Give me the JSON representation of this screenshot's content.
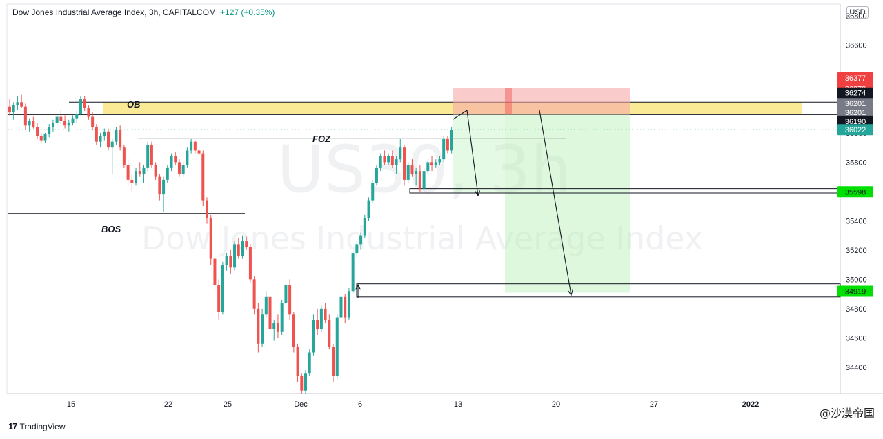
{
  "header": {
    "title": "Dow Jones Industrial Average Index, 3h, CAPITALCOM",
    "change": "+127 (+0.35%)"
  },
  "watermark": {
    "symbol": "US30, 3h",
    "name": "Dow Jones Industrial Average Index"
  },
  "currency": "USD",
  "branding": {
    "logo": "17",
    "name": "TradingView",
    "corner_mark": "@沙漠帝国"
  },
  "colors": {
    "up": "#26a69a",
    "down": "#ef5350",
    "ob_zone": "#fbe88a",
    "stop_zone": "#f7a9a8",
    "target_zone": "#b5f0b3",
    "label_green": "#00e000",
    "label_red": "#f04040",
    "label_black": "#131722",
    "label_gray": "#787b86",
    "label_last": "#26a69a"
  },
  "chart_data": {
    "type": "candlestick",
    "ylim": [
      34220,
      36880
    ],
    "y_ticks": [
      34400,
      34600,
      34800,
      35000,
      35200,
      35400,
      35600,
      35800,
      36000,
      36200,
      36400,
      36600,
      36800
    ],
    "x_ticks": [
      "15",
      "22",
      "25",
      "Dec",
      "6",
      "13",
      "20",
      "27",
      "2022"
    ],
    "annotations": [
      {
        "text": "OB",
        "price": 36190
      },
      {
        "text": "FOZ",
        "price": 35950
      },
      {
        "text": "BOS",
        "price": 35450
      }
    ],
    "price_labels": [
      {
        "text": "36377",
        "price": 36377,
        "color": "label_red"
      },
      {
        "text": "36372",
        "price": 36303,
        "color": "label_red"
      },
      {
        "text": "36274",
        "price": 36274,
        "color": "label_black"
      },
      {
        "text": "36201",
        "price": 36201,
        "color": "label_gray"
      },
      {
        "text": "36201",
        "price": 36140,
        "color": "label_gray"
      },
      {
        "text": "36190",
        "price": 36080,
        "color": "label_black"
      },
      {
        "text": "36022",
        "price": 36022,
        "color": "label_last"
      },
      {
        "text": "35598",
        "price": 35598,
        "color": "label_green"
      },
      {
        "text": "34919",
        "price": 34919,
        "color": "label_green"
      }
    ],
    "levels": {
      "ob_top": 36210,
      "ob_bottom": 36125,
      "foz": 35960,
      "bos": 35450,
      "target1_top": 35620,
      "target1_bottom": 35590,
      "target2_top": 34970,
      "target2_bottom": 34880,
      "stop_top": 36310,
      "entry": 36125,
      "tp": 34910
    },
    "candles": [
      {
        "o": 36180,
        "h": 36230,
        "l": 36120,
        "c": 36140
      },
      {
        "o": 36140,
        "h": 36210,
        "l": 36090,
        "c": 36190
      },
      {
        "o": 36190,
        "h": 36250,
        "l": 36160,
        "c": 36210
      },
      {
        "o": 36210,
        "h": 36260,
        "l": 36170,
        "c": 36180
      },
      {
        "o": 36180,
        "h": 36200,
        "l": 36020,
        "c": 36050
      },
      {
        "o": 36050,
        "h": 36100,
        "l": 36010,
        "c": 36080
      },
      {
        "o": 36080,
        "h": 36110,
        "l": 36030,
        "c": 36040
      },
      {
        "o": 36040,
        "h": 36070,
        "l": 35960,
        "c": 35980
      },
      {
        "o": 35980,
        "h": 36000,
        "l": 35930,
        "c": 35950
      },
      {
        "o": 35950,
        "h": 36000,
        "l": 35930,
        "c": 35990
      },
      {
        "o": 35990,
        "h": 36060,
        "l": 35970,
        "c": 36040
      },
      {
        "o": 36040,
        "h": 36090,
        "l": 36010,
        "c": 36070
      },
      {
        "o": 36070,
        "h": 36130,
        "l": 36050,
        "c": 36110
      },
      {
        "o": 36110,
        "h": 36160,
        "l": 36060,
        "c": 36080
      },
      {
        "o": 36080,
        "h": 36120,
        "l": 36030,
        "c": 36050
      },
      {
        "o": 36050,
        "h": 36090,
        "l": 36010,
        "c": 36070
      },
      {
        "o": 36070,
        "h": 36120,
        "l": 36050,
        "c": 36100
      },
      {
        "o": 36100,
        "h": 36150,
        "l": 36070,
        "c": 36130
      },
      {
        "o": 36130,
        "h": 36250,
        "l": 36120,
        "c": 36230
      },
      {
        "o": 36230,
        "h": 36250,
        "l": 36150,
        "c": 36170
      },
      {
        "o": 36170,
        "h": 36190,
        "l": 36090,
        "c": 36110
      },
      {
        "o": 36110,
        "h": 36140,
        "l": 36020,
        "c": 36040
      },
      {
        "o": 36040,
        "h": 36060,
        "l": 35920,
        "c": 35940
      },
      {
        "o": 35940,
        "h": 36000,
        "l": 35900,
        "c": 35980
      },
      {
        "o": 35980,
        "h": 36030,
        "l": 35950,
        "c": 36010
      },
      {
        "o": 36010,
        "h": 36030,
        "l": 35880,
        "c": 35900
      },
      {
        "o": 35900,
        "h": 35960,
        "l": 35720,
        "c": 35940
      },
      {
        "o": 35940,
        "h": 36040,
        "l": 35920,
        "c": 36020
      },
      {
        "o": 36020,
        "h": 36050,
        "l": 35880,
        "c": 35900
      },
      {
        "o": 35900,
        "h": 35920,
        "l": 35760,
        "c": 35780
      },
      {
        "o": 35780,
        "h": 35820,
        "l": 35640,
        "c": 35680
      },
      {
        "o": 35680,
        "h": 35720,
        "l": 35600,
        "c": 35660
      },
      {
        "o": 35660,
        "h": 35760,
        "l": 35640,
        "c": 35740
      },
      {
        "o": 35740,
        "h": 35800,
        "l": 35700,
        "c": 35720
      },
      {
        "o": 35720,
        "h": 35780,
        "l": 35660,
        "c": 35760
      },
      {
        "o": 35760,
        "h": 35940,
        "l": 35740,
        "c": 35920
      },
      {
        "o": 35920,
        "h": 35940,
        "l": 35760,
        "c": 35780
      },
      {
        "o": 35780,
        "h": 35800,
        "l": 35680,
        "c": 35700
      },
      {
        "o": 35700,
        "h": 35720,
        "l": 35540,
        "c": 35580
      },
      {
        "o": 35580,
        "h": 35700,
        "l": 35460,
        "c": 35680
      },
      {
        "o": 35680,
        "h": 35780,
        "l": 35660,
        "c": 35760
      },
      {
        "o": 35760,
        "h": 35860,
        "l": 35740,
        "c": 35840
      },
      {
        "o": 35840,
        "h": 35870,
        "l": 35780,
        "c": 35800
      },
      {
        "o": 35800,
        "h": 35820,
        "l": 35700,
        "c": 35720
      },
      {
        "o": 35720,
        "h": 35800,
        "l": 35700,
        "c": 35780
      },
      {
        "o": 35780,
        "h": 35900,
        "l": 35760,
        "c": 35880
      },
      {
        "o": 35880,
        "h": 35960,
        "l": 35860,
        "c": 35940
      },
      {
        "o": 35940,
        "h": 35950,
        "l": 35860,
        "c": 35880
      },
      {
        "o": 35880,
        "h": 35910,
        "l": 35840,
        "c": 35860
      },
      {
        "o": 35860,
        "h": 35880,
        "l": 35500,
        "c": 35540
      },
      {
        "o": 35540,
        "h": 35560,
        "l": 35380,
        "c": 35420
      },
      {
        "o": 35420,
        "h": 35440,
        "l": 35100,
        "c": 35140
      },
      {
        "o": 35140,
        "h": 35160,
        "l": 34900,
        "c": 34960
      },
      {
        "o": 34960,
        "h": 35000,
        "l": 34720,
        "c": 34780
      },
      {
        "o": 34780,
        "h": 35120,
        "l": 34760,
        "c": 35100
      },
      {
        "o": 35100,
        "h": 35180,
        "l": 35060,
        "c": 35160
      },
      {
        "o": 35160,
        "h": 35200,
        "l": 35040,
        "c": 35080
      },
      {
        "o": 35080,
        "h": 35260,
        "l": 35060,
        "c": 35240
      },
      {
        "o": 35240,
        "h": 35280,
        "l": 35140,
        "c": 35160
      },
      {
        "o": 35160,
        "h": 35300,
        "l": 35140,
        "c": 35260
      },
      {
        "o": 35260,
        "h": 35290,
        "l": 35200,
        "c": 35220
      },
      {
        "o": 35220,
        "h": 35240,
        "l": 34980,
        "c": 35000
      },
      {
        "o": 35000,
        "h": 35020,
        "l": 34760,
        "c": 34800
      },
      {
        "o": 34800,
        "h": 34840,
        "l": 34500,
        "c": 34560
      },
      {
        "o": 34560,
        "h": 34800,
        "l": 34540,
        "c": 34760
      },
      {
        "o": 34760,
        "h": 34920,
        "l": 34740,
        "c": 34880
      },
      {
        "o": 34880,
        "h": 34900,
        "l": 34620,
        "c": 34660
      },
      {
        "o": 34660,
        "h": 34720,
        "l": 34580,
        "c": 34700
      },
      {
        "o": 34700,
        "h": 34760,
        "l": 34600,
        "c": 34640
      },
      {
        "o": 34640,
        "h": 34860,
        "l": 34620,
        "c": 34840
      },
      {
        "o": 34840,
        "h": 34980,
        "l": 34820,
        "c": 34960
      },
      {
        "o": 34960,
        "h": 35000,
        "l": 34720,
        "c": 34760
      },
      {
        "o": 34760,
        "h": 34780,
        "l": 34500,
        "c": 34540
      },
      {
        "o": 34540,
        "h": 34560,
        "l": 34300,
        "c": 34340
      },
      {
        "o": 34340,
        "h": 34360,
        "l": 34220,
        "c": 34240
      },
      {
        "o": 34240,
        "h": 34380,
        "l": 34220,
        "c": 34360
      },
      {
        "o": 34360,
        "h": 34520,
        "l": 34340,
        "c": 34500
      },
      {
        "o": 34500,
        "h": 34760,
        "l": 34480,
        "c": 34720
      },
      {
        "o": 34720,
        "h": 34800,
        "l": 34620,
        "c": 34660
      },
      {
        "o": 34660,
        "h": 34820,
        "l": 34640,
        "c": 34800
      },
      {
        "o": 34800,
        "h": 34840,
        "l": 34700,
        "c": 34720
      },
      {
        "o": 34720,
        "h": 34760,
        "l": 34520,
        "c": 34540
      },
      {
        "o": 34540,
        "h": 34560,
        "l": 34300,
        "c": 34340
      },
      {
        "o": 34340,
        "h": 34760,
        "l": 34320,
        "c": 34740
      },
      {
        "o": 34740,
        "h": 34920,
        "l": 34700,
        "c": 34880
      },
      {
        "o": 34880,
        "h": 34900,
        "l": 34700,
        "c": 34740
      },
      {
        "o": 34740,
        "h": 34940,
        "l": 34720,
        "c": 34920
      },
      {
        "o": 34920,
        "h": 35200,
        "l": 34900,
        "c": 35180
      },
      {
        "o": 35180,
        "h": 35260,
        "l": 35140,
        "c": 35240
      },
      {
        "o": 35240,
        "h": 35320,
        "l": 35200,
        "c": 35300
      },
      {
        "o": 35300,
        "h": 35440,
        "l": 35280,
        "c": 35420
      },
      {
        "o": 35420,
        "h": 35560,
        "l": 35400,
        "c": 35540
      },
      {
        "o": 35540,
        "h": 35680,
        "l": 35520,
        "c": 35660
      },
      {
        "o": 35660,
        "h": 35780,
        "l": 35640,
        "c": 35760
      },
      {
        "o": 35760,
        "h": 35860,
        "l": 35740,
        "c": 35840
      },
      {
        "o": 35840,
        "h": 35880,
        "l": 35780,
        "c": 35800
      },
      {
        "o": 35800,
        "h": 35860,
        "l": 35780,
        "c": 35840
      },
      {
        "o": 35840,
        "h": 35880,
        "l": 35760,
        "c": 35780
      },
      {
        "o": 35780,
        "h": 35840,
        "l": 35720,
        "c": 35820
      },
      {
        "o": 35820,
        "h": 35960,
        "l": 35800,
        "c": 35900
      },
      {
        "o": 35900,
        "h": 35920,
        "l": 35640,
        "c": 35680
      },
      {
        "o": 35680,
        "h": 35800,
        "l": 35660,
        "c": 35780
      },
      {
        "o": 35780,
        "h": 35820,
        "l": 35700,
        "c": 35720
      },
      {
        "o": 35720,
        "h": 35760,
        "l": 35640,
        "c": 35740
      },
      {
        "o": 35740,
        "h": 35780,
        "l": 35600,
        "c": 35620
      },
      {
        "o": 35620,
        "h": 35760,
        "l": 35600,
        "c": 35740
      },
      {
        "o": 35740,
        "h": 35820,
        "l": 35720,
        "c": 35800
      },
      {
        "o": 35800,
        "h": 35840,
        "l": 35740,
        "c": 35780
      },
      {
        "o": 35780,
        "h": 35820,
        "l": 35760,
        "c": 35800
      },
      {
        "o": 35800,
        "h": 35840,
        "l": 35780,
        "c": 35820
      },
      {
        "o": 35820,
        "h": 35980,
        "l": 35800,
        "c": 35960
      },
      {
        "o": 35960,
        "h": 35980,
        "l": 35860,
        "c": 35880
      },
      {
        "o": 35880,
        "h": 36040,
        "l": 35860,
        "c": 36022
      }
    ]
  }
}
